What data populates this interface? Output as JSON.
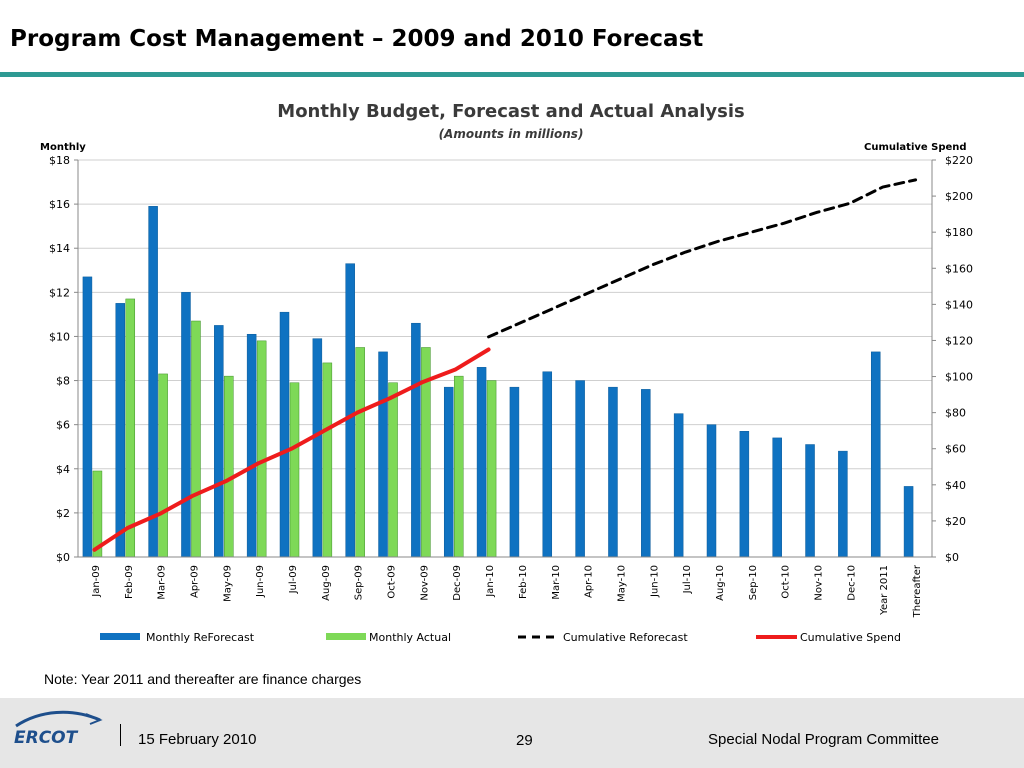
{
  "slide": {
    "title": "Program Cost Management – 2009 and 2010 Forecast",
    "note": "Note: Year 2011 and thereafter are finance charges"
  },
  "footer": {
    "logo_text": "ERCOT",
    "date": "15 February 2010",
    "page": "29",
    "committee": "Special Nodal Program Committee"
  },
  "colors": {
    "accent": "#2e9a93",
    "reforecast_bar": "#0f72c1",
    "actual_bar": "#7ed957",
    "cumulative_spend": "#ee1c1c",
    "cumulative_reforecast": "#000000"
  },
  "chart_data": {
    "type": "bar",
    "title": "Monthly Budget, Forecast and Actual Analysis",
    "subtitle": "(Amounts in millions)",
    "ylabel": "Monthly",
    "y2label": "Cumulative Spend",
    "ylim": [
      0,
      18
    ],
    "y2lim": [
      0,
      220
    ],
    "yticks": [
      "$0",
      "$2",
      "$4",
      "$6",
      "$8",
      "$10",
      "$12",
      "$14",
      "$16",
      "$18"
    ],
    "y2ticks": [
      "$0",
      "$20",
      "$40",
      "$60",
      "$80",
      "$100",
      "$120",
      "$140",
      "$160",
      "$180",
      "$200",
      "$220"
    ],
    "grid": "horizontal",
    "legend_position": "bottom",
    "categories": [
      "Jan-09",
      "Feb-09",
      "Mar-09",
      "Apr-09",
      "May-09",
      "Jun-09",
      "Jul-09",
      "Aug-09",
      "Sep-09",
      "Oct-09",
      "Nov-09",
      "Dec-09",
      "Jan-10",
      "Feb-10",
      "Mar-10",
      "Apr-10",
      "May-10",
      "Jun-10",
      "Jul-10",
      "Aug-10",
      "Sep-10",
      "Oct-10",
      "Nov-10",
      "Dec-10",
      "Year 2011",
      "Thereafter"
    ],
    "series": [
      {
        "name": "Monthly ReForecast",
        "type": "bar",
        "axis": "left",
        "values": [
          12.7,
          11.5,
          15.9,
          12.0,
          10.5,
          10.1,
          11.1,
          9.9,
          13.3,
          9.3,
          10.6,
          7.7,
          8.6,
          7.7,
          8.4,
          8.0,
          7.7,
          7.6,
          6.5,
          6.0,
          5.7,
          5.4,
          5.1,
          4.8,
          9.3,
          3.2
        ]
      },
      {
        "name": "Monthly Actual",
        "type": "bar",
        "axis": "left",
        "values": [
          3.9,
          11.7,
          8.3,
          10.7,
          8.2,
          9.8,
          7.9,
          8.8,
          9.5,
          7.9,
          9.5,
          8.2,
          8.0,
          null,
          null,
          null,
          null,
          null,
          null,
          null,
          null,
          null,
          null,
          null,
          null,
          null
        ]
      },
      {
        "name": "Cumulative Reforecast",
        "type": "line",
        "style": "dashed",
        "axis": "right",
        "values": [
          null,
          null,
          null,
          null,
          null,
          null,
          null,
          null,
          null,
          null,
          null,
          null,
          122,
          130,
          138,
          146,
          154,
          162,
          169,
          175,
          180,
          185,
          191,
          196,
          205,
          209
        ]
      },
      {
        "name": "Cumulative Spend",
        "type": "line",
        "axis": "right",
        "values": [
          4,
          16,
          24,
          34,
          42,
          52,
          60,
          70,
          80,
          88,
          97,
          104,
          115,
          null,
          null,
          null,
          null,
          null,
          null,
          null,
          null,
          null,
          null,
          null,
          null,
          null
        ]
      }
    ]
  }
}
